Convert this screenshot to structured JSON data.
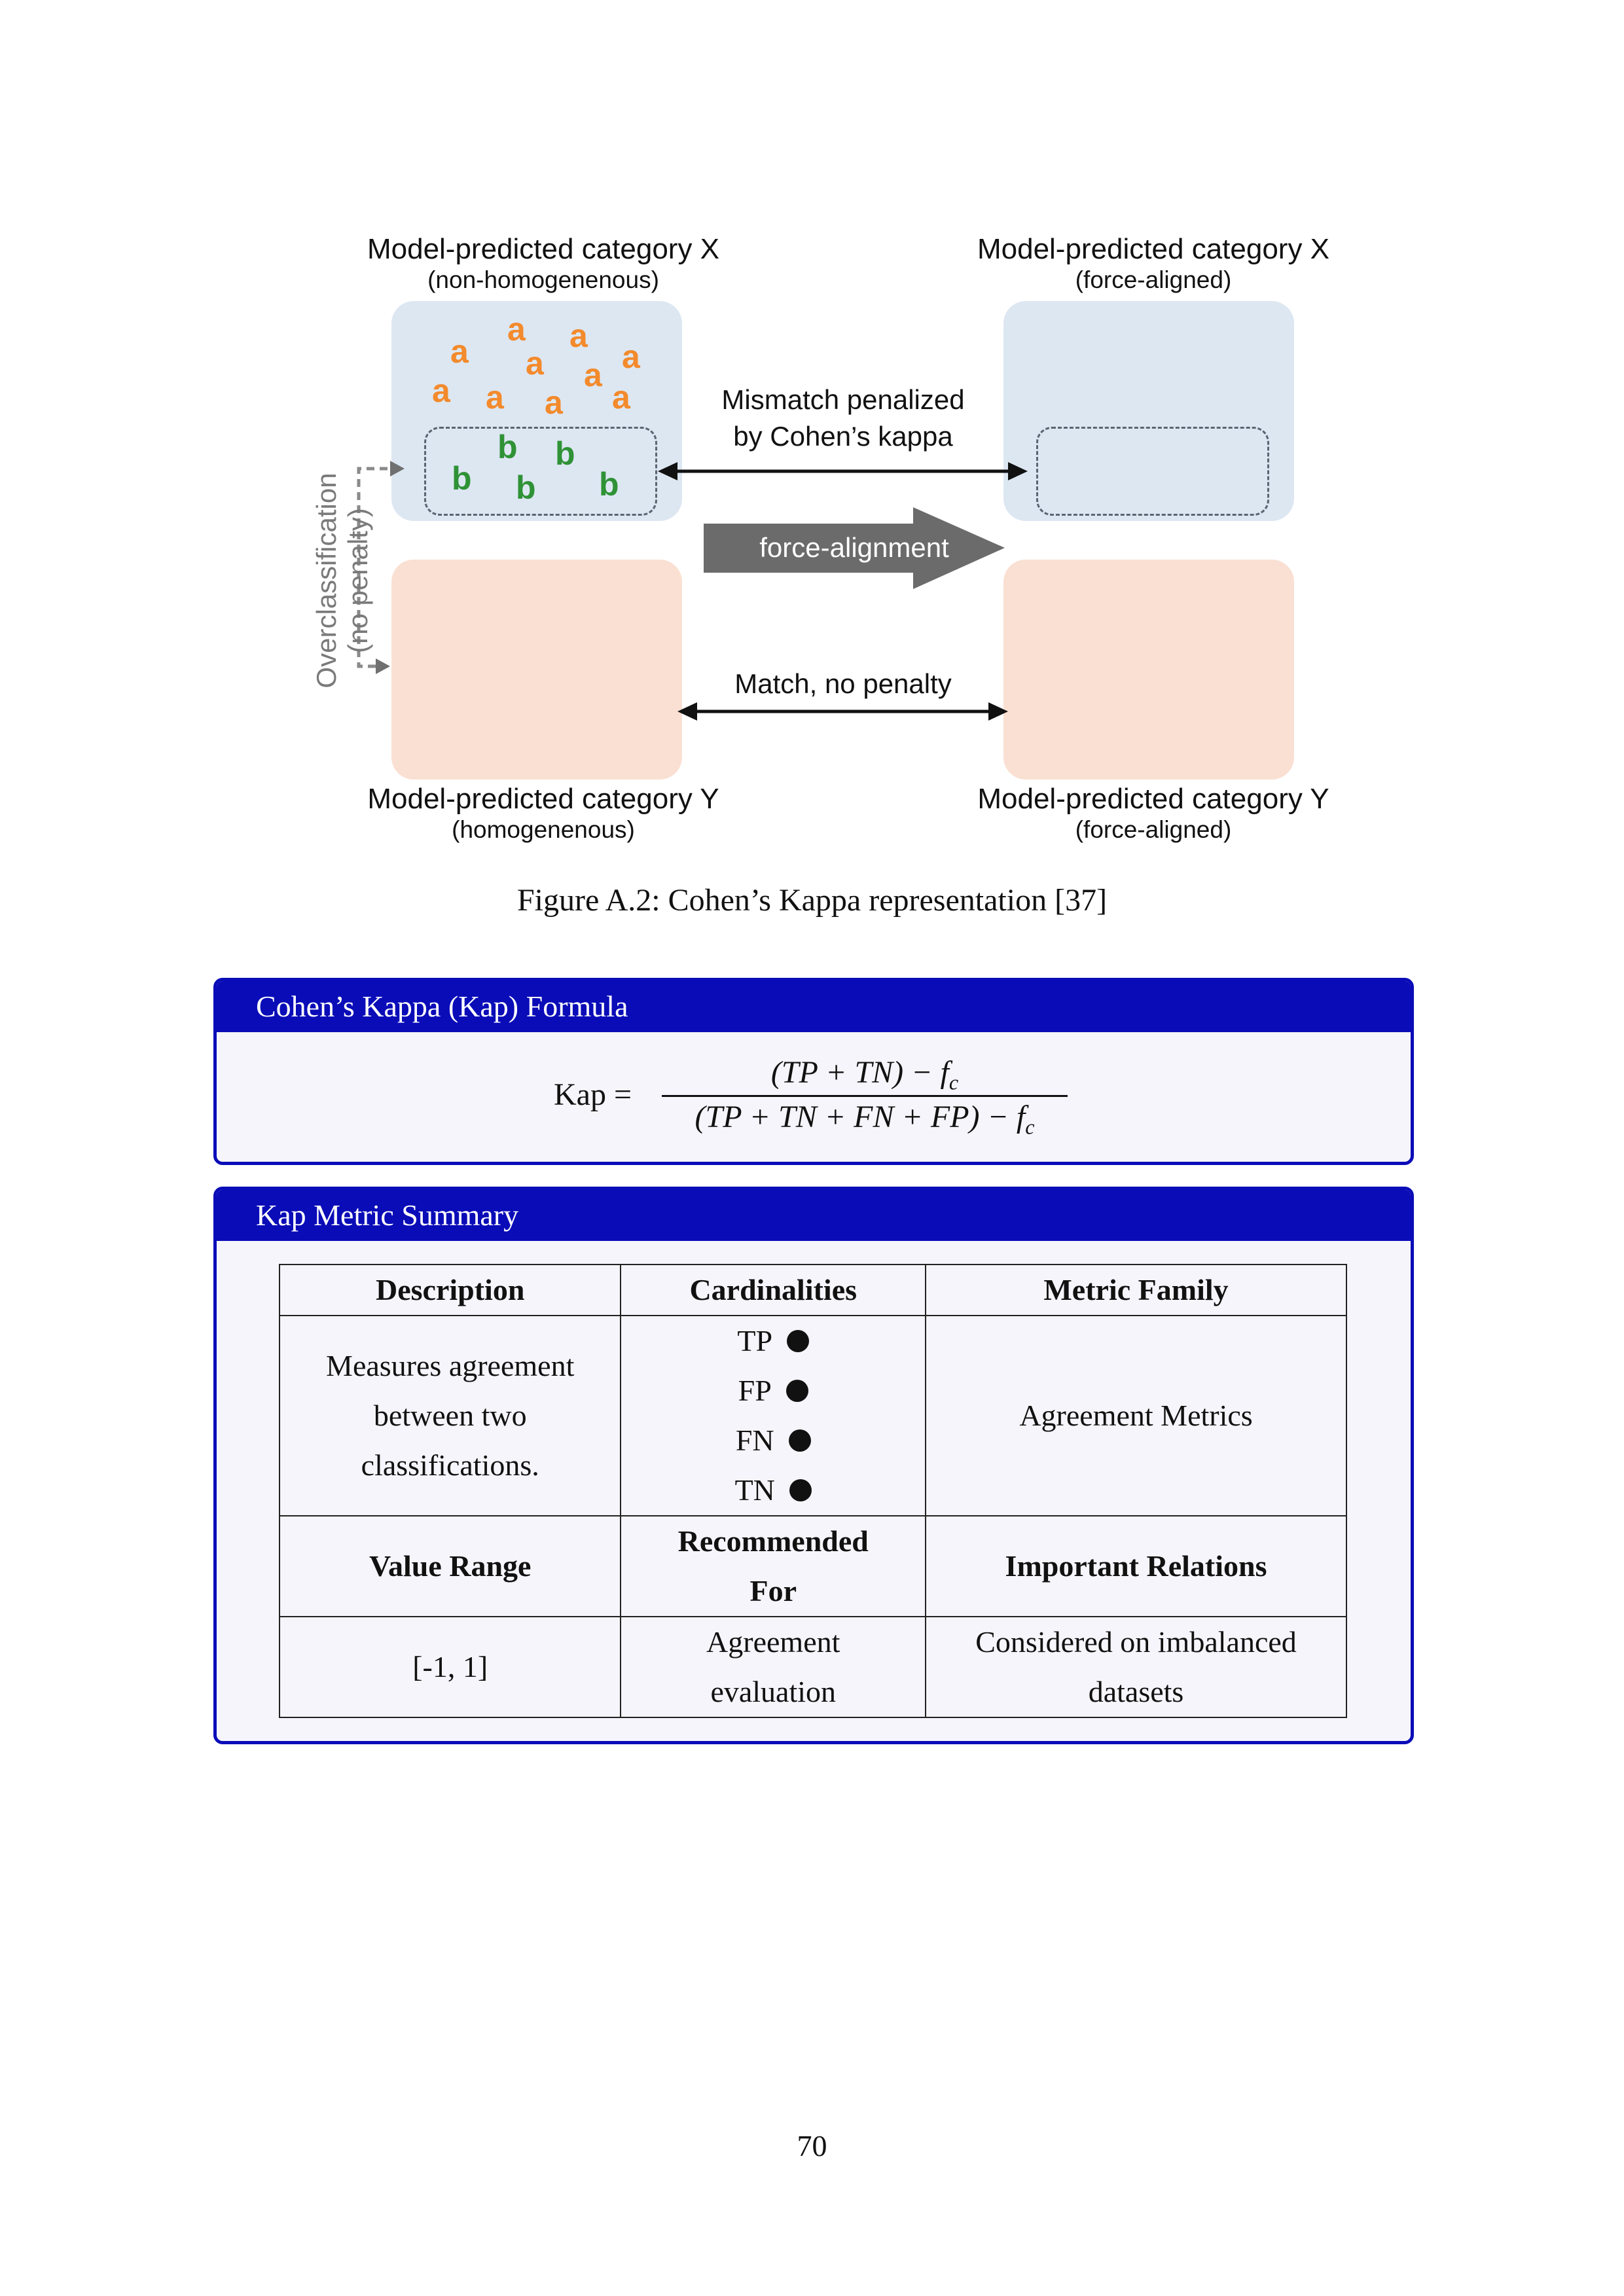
{
  "figure": {
    "left_top": {
      "title": "Model-predicted category X",
      "subtitle": "(non-homogenenous)"
    },
    "right_top": {
      "title": "Model-predicted category X",
      "subtitle": "(force-aligned)"
    },
    "left_bottom": {
      "title": "Model-predicted category Y",
      "subtitle": "(homogenenous)"
    },
    "right_bottom": {
      "title": "Model-predicted category Y",
      "subtitle": "(force-aligned)"
    },
    "letter_a": "a",
    "letter_b": "b",
    "mismatch_label_1": "Mismatch penalized",
    "mismatch_label_2": "by Cohen’s kappa",
    "force_alignment_label": "force-alignment",
    "match_label": "Match, no penalty",
    "side_label_1": "Overclassification",
    "side_label_2": "(no penalty)",
    "colors": {
      "a": "#f38a2c",
      "b": "#2f9236",
      "blue_box": "#dde7f2",
      "peach_box": "#fae0d2",
      "big_arrow": "#6b6b6b"
    }
  },
  "caption": "Figure A.2: Cohen’s Kappa representation [37]",
  "formula_panel": {
    "title": "Cohen’s Kappa (Kap) Formula",
    "lhs": "Kap =",
    "numerator": "(TP + TN) − f",
    "denominator": "(TP + TN + FN + FP) − f",
    "subscript": "c"
  },
  "summary_panel": {
    "title": "Kap Metric Summary",
    "headers": [
      "Description",
      "Cardinalities",
      "Metric Family"
    ],
    "description": [
      "Measures agreement",
      "between two",
      "classifications."
    ],
    "cardinalities": [
      "TP",
      "FP",
      "FN",
      "TN"
    ],
    "metric_family": "Agreement Metrics",
    "headers2": [
      "Value Range",
      "Recommended",
      "For",
      "Important Relations"
    ],
    "value_range": "[-1, 1]",
    "recommended": [
      "Agreement",
      "evaluation"
    ],
    "relations": [
      "Considered on imbalanced",
      "datasets"
    ],
    "accent_color": "#0a0cb8"
  },
  "page_number": "70"
}
